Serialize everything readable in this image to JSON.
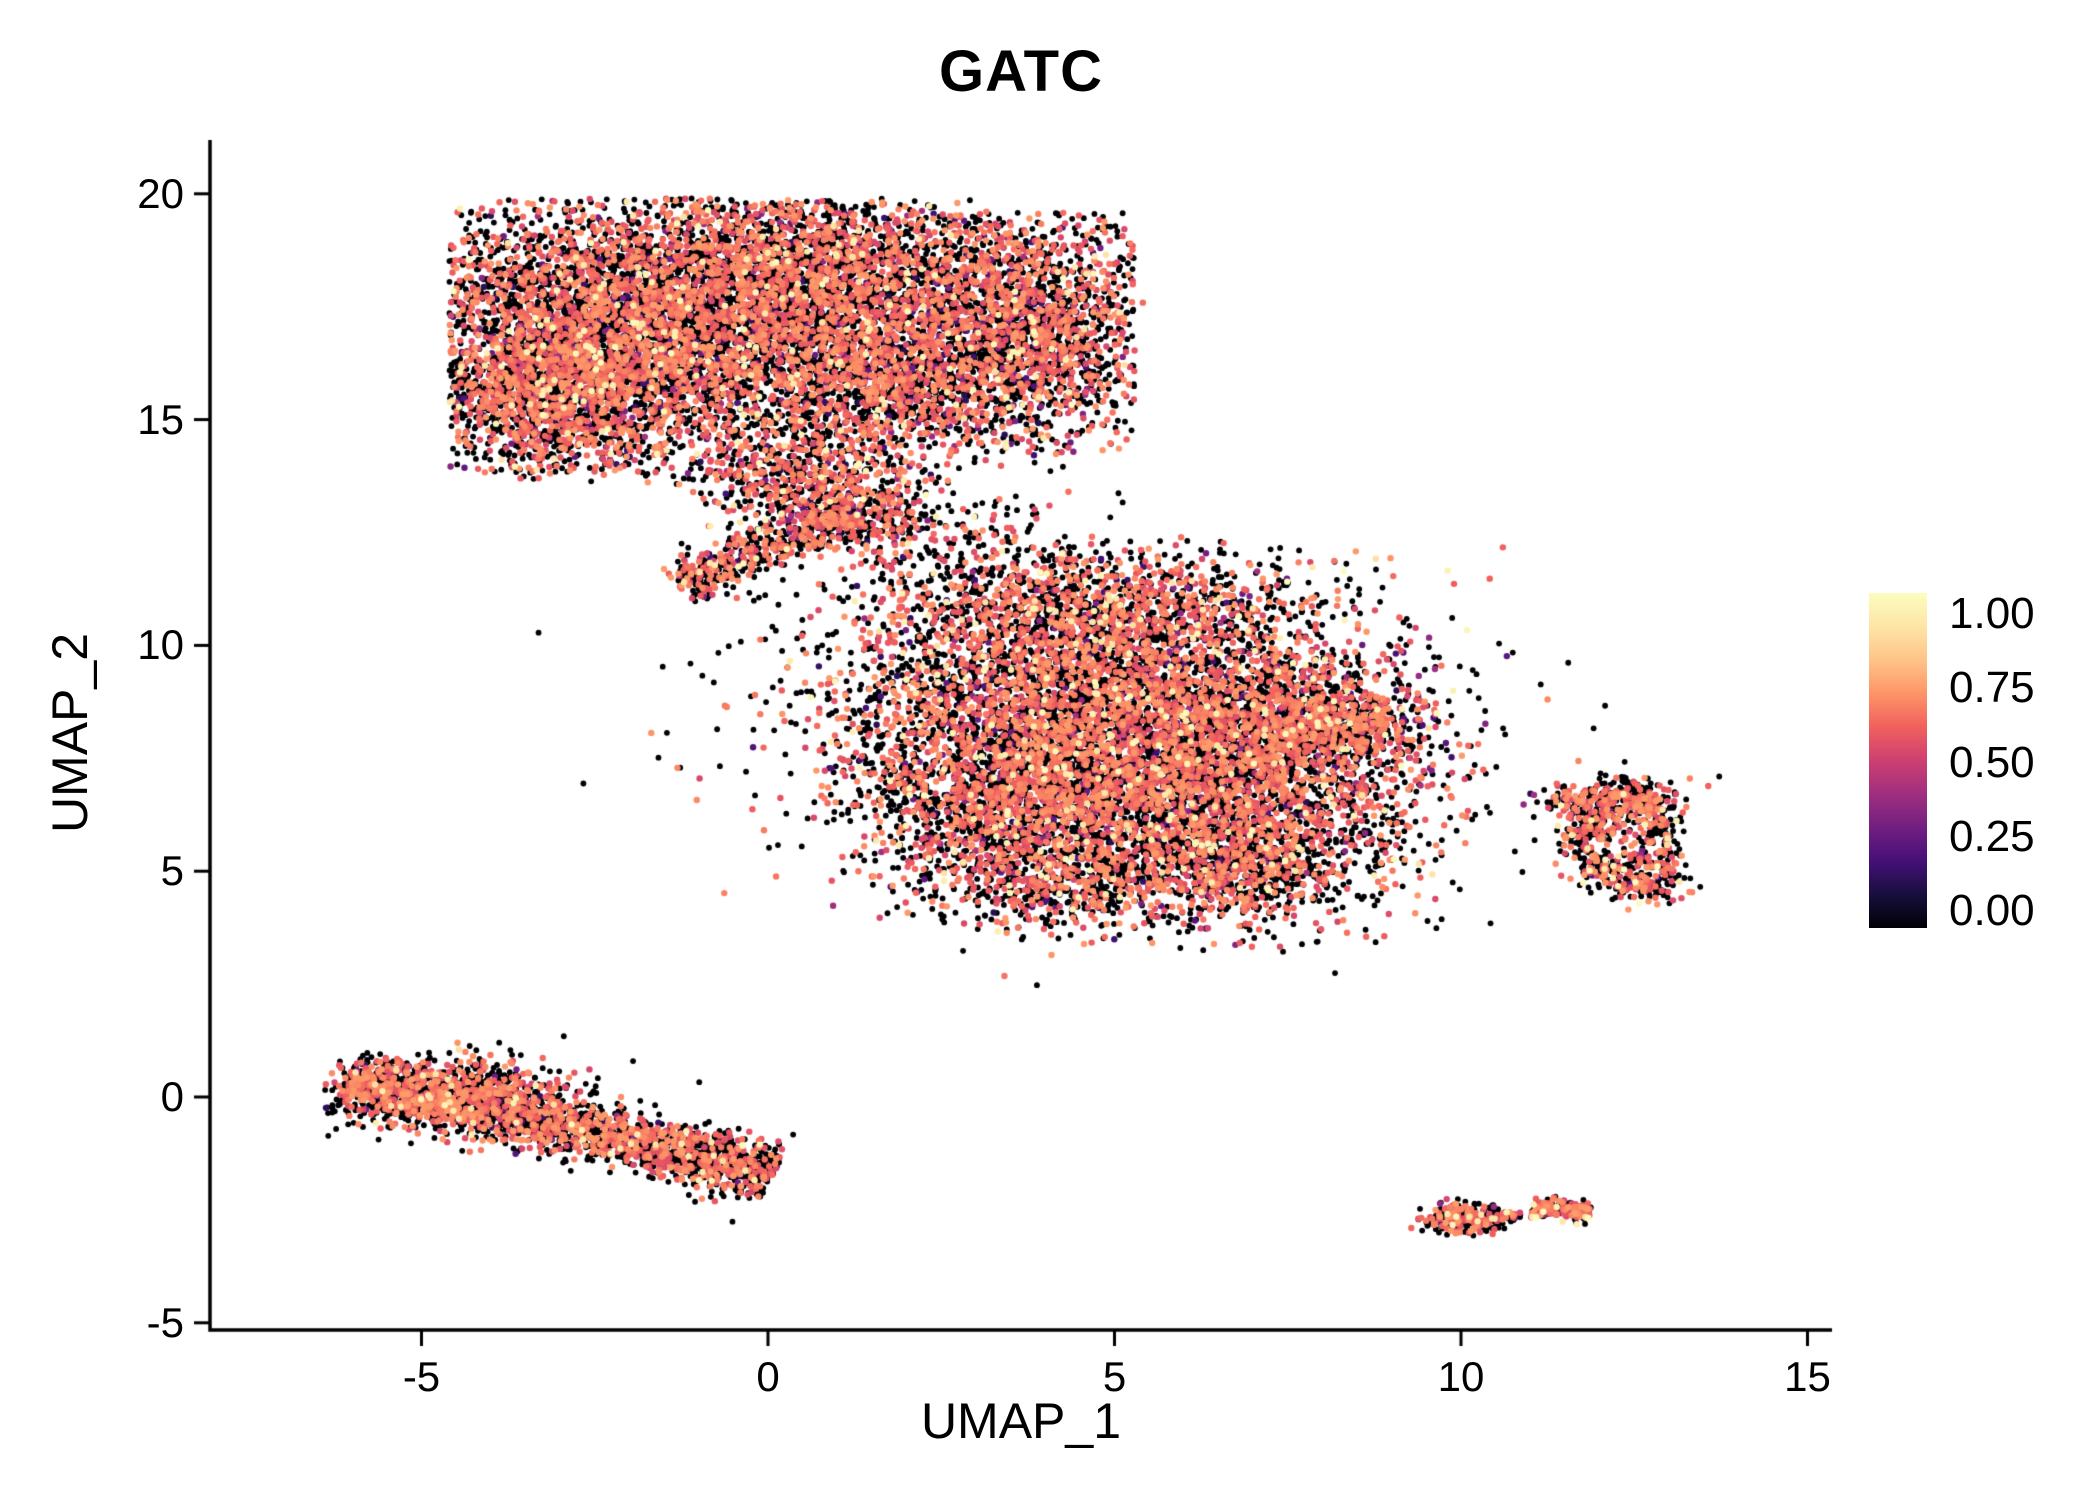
{
  "colorbar": {
    "labels": [
      "1.00",
      "0.75",
      "0.50",
      "0.25",
      "0.00"
    ]
  },
  "chart_data": {
    "type": "scatter",
    "title": "GATC",
    "xlabel": "UMAP_1",
    "ylabel": "UMAP_2",
    "xlim": [
      -8.1,
      15.4
    ],
    "ylim": [
      -5.2,
      21.2
    ],
    "grid": false,
    "legend_position": "right",
    "x_ticks": [
      {
        "value": -5,
        "label": "-5"
      },
      {
        "value": 0,
        "label": "0"
      },
      {
        "value": 5,
        "label": "5"
      },
      {
        "value": 10,
        "label": "10"
      },
      {
        "value": 15,
        "label": "15"
      }
    ],
    "y_ticks": [
      {
        "value": 20,
        "label": "20"
      },
      {
        "value": 15,
        "label": "15"
      },
      {
        "value": 10,
        "label": "10"
      },
      {
        "value": 5,
        "label": "5"
      },
      {
        "value": 0,
        "label": "0"
      },
      {
        "value": -5,
        "label": "-5"
      }
    ],
    "color_scale": {
      "name": "magma",
      "min": 0,
      "max": 1,
      "stops": [
        [
          0.0,
          "#000004"
        ],
        [
          0.1,
          "#180F3E"
        ],
        [
          0.2,
          "#451077"
        ],
        [
          0.3,
          "#721F81"
        ],
        [
          0.4,
          "#9F2F7F"
        ],
        [
          0.5,
          "#CD4071"
        ],
        [
          0.6,
          "#F1605D"
        ],
        [
          0.7,
          "#FD9567"
        ],
        [
          0.8,
          "#FEC488"
        ],
        [
          0.9,
          "#FDE5A7"
        ],
        [
          1.0,
          "#FCFDBF"
        ]
      ]
    },
    "point_radius_px": {
      "zero": 2.9,
      "expressing": 3.2
    },
    "seed": 1337,
    "default_mix": {
      "zero": 0.53,
      "mid": 0.41,
      "low": 0.035,
      "high": 0.025
    },
    "value_ranges": {
      "mid": [
        0.52,
        0.72
      ],
      "low": [
        0.12,
        0.42
      ],
      "high": [
        0.88,
        1.0
      ]
    },
    "clusters": [
      {
        "name": "tl-main",
        "shape": "gauss",
        "cx": -1.7,
        "cy": 17.1,
        "sx": 1.85,
        "sy": 1.45,
        "n": 5200,
        "clip": {
          "xmin": -4.6,
          "ymax": 19.9,
          "ymin": 13.6
        }
      },
      {
        "name": "tl-left",
        "shape": "gauss",
        "cx": -3.1,
        "cy": 15.7,
        "sx": 1.05,
        "sy": 1.0,
        "n": 1500,
        "clip": {
          "xmin": -4.6,
          "ymin": 13.8
        }
      },
      {
        "name": "tl-top",
        "shape": "gauss",
        "cx": 0.7,
        "cy": 18.4,
        "sx": 1.25,
        "sy": 0.85,
        "n": 1400,
        "clip": {
          "ymax": 19.9
        }
      },
      {
        "name": "tl-right-lobe",
        "shape": "gauss",
        "cx": 3.6,
        "cy": 17.1,
        "sx": 1.15,
        "sy": 1.35,
        "n": 2300,
        "clip": {
          "xmax": 5.3,
          "ymax": 19.6,
          "ymin": 14.2
        }
      },
      {
        "name": "tl-junction",
        "shape": "gauss",
        "cx": 1.7,
        "cy": 15.9,
        "sx": 0.95,
        "sy": 0.95,
        "n": 1100
      },
      {
        "name": "tl-funnel",
        "shape": "gauss",
        "cx": 0.55,
        "cy": 13.6,
        "sx": 0.75,
        "sy": 0.6,
        "n": 600
      },
      {
        "name": "tl-strip",
        "shape": "bar",
        "cx": 0.0,
        "cy": 12.15,
        "half_len": 1.55,
        "angle_deg": 33,
        "width_sd": 0.24,
        "n": 500
      },
      {
        "name": "tl-strip2",
        "shape": "gauss",
        "cx": 1.6,
        "cy": 12.8,
        "sx": 0.45,
        "sy": 0.4,
        "n": 200
      },
      {
        "name": "bridge-sparse",
        "shape": "gauss",
        "cx": 2.9,
        "cy": 11.9,
        "sx": 1.1,
        "sy": 0.85,
        "n": 260,
        "mix": {
          "zero": 0.6,
          "mid": 0.36,
          "low": 0.02,
          "high": 0.02
        }
      },
      {
        "name": "center-main",
        "shape": "gauss",
        "cx": 4.9,
        "cy": 8.6,
        "sx": 1.95,
        "sy": 1.55,
        "n": 5400,
        "clip": {
          "ymax": 12.2
        }
      },
      {
        "name": "center-lower-right",
        "shape": "gauss",
        "cx": 6.3,
        "cy": 6.3,
        "sx": 1.55,
        "sy": 1.15,
        "n": 2500
      },
      {
        "name": "center-left",
        "shape": "gauss",
        "cx": 3.2,
        "cy": 6.7,
        "sx": 1.0,
        "sy": 1.1,
        "n": 1200
      },
      {
        "name": "center-right-bump",
        "shape": "gauss",
        "cx": 7.8,
        "cy": 8.3,
        "sx": 0.85,
        "sy": 0.65,
        "n": 750
      },
      {
        "name": "center-right-tip",
        "shape": "bar",
        "cx": 8.35,
        "cy": 8.25,
        "half_len": 0.55,
        "angle_deg": 4,
        "width_sd": 0.26,
        "n": 200
      },
      {
        "name": "center-top",
        "shape": "gauss",
        "cx": 4.9,
        "cy": 10.9,
        "sx": 1.3,
        "sy": 0.6,
        "n": 650,
        "clip": {
          "ymax": 12.4
        }
      },
      {
        "name": "center-bottom-tail",
        "shape": "gauss",
        "cx": 4.3,
        "cy": 4.7,
        "sx": 0.9,
        "sy": 0.5,
        "n": 450
      },
      {
        "name": "center-bottom-right",
        "shape": "gauss",
        "cx": 6.9,
        "cy": 5.0,
        "sx": 0.7,
        "sy": 0.55,
        "n": 380
      },
      {
        "name": "center-right-sparse",
        "shape": "gauss",
        "cx": 8.9,
        "cy": 7.0,
        "sx": 0.45,
        "sy": 0.8,
        "n": 50,
        "mix": {
          "zero": 0.6,
          "mid": 0.36,
          "low": 0.02,
          "high": 0.02
        }
      },
      {
        "name": "bottom-left-bar",
        "shape": "bar",
        "cx": -3.0,
        "cy": -0.65,
        "half_len": 3.25,
        "angle_deg": -19,
        "width_sd": 0.3,
        "n": 2400,
        "mix": {
          "zero": 0.58,
          "mid": 0.38,
          "low": 0.02,
          "high": 0.02
        },
        "clip": {
          "xmin": -6.4,
          "xmax": 0.45
        }
      },
      {
        "name": "bottom-left-thick",
        "shape": "gauss",
        "cx": -4.6,
        "cy": 0.1,
        "sx": 0.9,
        "sy": 0.42,
        "n": 700,
        "mix": {
          "zero": 0.55,
          "mid": 0.41,
          "low": 0.02,
          "high": 0.02
        },
        "clip": {
          "xmin": -6.4
        }
      },
      {
        "name": "right-ring",
        "shape": "ring",
        "cx": 12.35,
        "cy": 5.75,
        "rx": 0.6,
        "ry": 0.85,
        "width_sd": 0.3,
        "n": 620,
        "clip": {
          "xmax": 13.4,
          "ymin": 4.3,
          "ymax": 7.1
        }
      },
      {
        "name": "right-bottom-tip",
        "shape": "gauss",
        "cx": 12.75,
        "cy": 4.75,
        "sx": 0.3,
        "sy": 0.22,
        "n": 90
      },
      {
        "name": "right-upper-left",
        "shape": "gauss",
        "cx": 11.6,
        "cy": 6.5,
        "sx": 0.24,
        "sy": 0.18,
        "n": 70
      },
      {
        "name": "right-top",
        "shape": "gauss",
        "cx": 12.5,
        "cy": 6.7,
        "sx": 0.4,
        "sy": 0.2,
        "n": 110
      },
      {
        "name": "br-left",
        "shape": "gauss",
        "cx": 10.05,
        "cy": -2.7,
        "sx": 0.3,
        "sy": 0.17,
        "n": 230,
        "mix": {
          "zero": 0.5,
          "mid": 0.44,
          "low": 0.02,
          "high": 0.04
        }
      },
      {
        "name": "br-right",
        "shape": "bar",
        "cx": 11.45,
        "cy": -2.5,
        "half_len": 0.42,
        "angle_deg": -6,
        "width_sd": 0.1,
        "n": 210,
        "mix": {
          "zero": 0.5,
          "mid": 0.44,
          "low": 0.02,
          "high": 0.04
        }
      },
      {
        "name": "br-mid-dot",
        "shape": "gauss",
        "cx": 10.72,
        "cy": -2.62,
        "sx": 0.07,
        "sy": 0.05,
        "n": 22
      }
    ],
    "outliers": [
      [
        6.95,
        3.7,
        0
      ],
      [
        5.55,
        3.8,
        0
      ],
      [
        9.4,
        7.9,
        0
      ],
      [
        9.15,
        8.3,
        0.6
      ],
      [
        1.3,
        10.6,
        0
      ],
      [
        0.15,
        10.9,
        0
      ],
      [
        -0.45,
        11.05,
        0.62
      ],
      [
        2.1,
        10.8,
        0
      ],
      [
        11.2,
        6.8,
        0
      ],
      [
        13.2,
        6.3,
        0.6
      ],
      [
        11.05,
        6.2,
        0
      ],
      [
        12.0,
        7.05,
        0
      ],
      [
        10.4,
        -2.45,
        0
      ],
      [
        3.45,
        12.6,
        0.6
      ],
      [
        2.6,
        13.1,
        0
      ],
      [
        4.1,
        12.0,
        0
      ]
    ],
    "note": "UMAP feature plot of GATC expression; point cloud approximated from cluster density summaries (~29,000 cells), values on 0-1 magma scale."
  }
}
